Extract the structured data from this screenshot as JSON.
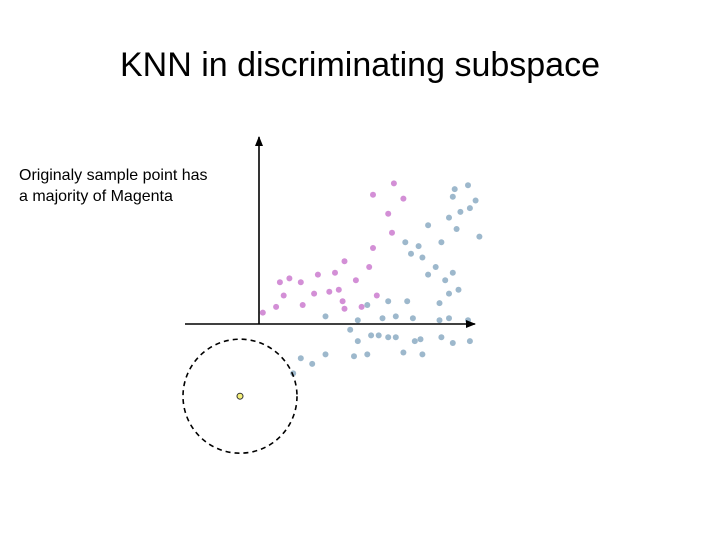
{
  "slide": {
    "title": "KNN in discriminating subspace",
    "caption_lines": [
      "Originaly sample point has",
      "a majority of Magenta"
    ]
  },
  "colors": {
    "magenta": "#d38fd6",
    "blue": "#9db8cc",
    "sample": "#f5f07a",
    "axis": "#000000"
  },
  "chart_data": {
    "type": "scatter",
    "title": "KNN in discriminating subspace",
    "xlabel": "",
    "ylabel": "",
    "annotations": [
      "Originaly sample point has a majority of Magenta"
    ],
    "series": [
      {
        "color": "magenta",
        "points": [
          [
            0.2,
            0.6
          ],
          [
            0.9,
            0.9
          ],
          [
            2.3,
            1.0
          ],
          [
            3.7,
            1.7
          ],
          [
            4.5,
            0.8
          ],
          [
            4.4,
            1.2
          ],
          [
            4.2,
            1.8
          ],
          [
            5.4,
            0.9
          ],
          [
            6.2,
            1.5
          ],
          [
            1.3,
            1.5
          ],
          [
            2.9,
            1.6
          ],
          [
            2.2,
            2.2
          ],
          [
            1.6,
            2.4
          ],
          [
            1.1,
            2.2
          ],
          [
            4.0,
            2.7
          ],
          [
            3.1,
            2.6
          ],
          [
            5.1,
            2.3
          ],
          [
            4.5,
            3.3
          ],
          [
            5.8,
            3.0
          ],
          [
            6.0,
            4.0
          ],
          [
            7.0,
            4.8
          ],
          [
            6.8,
            5.8
          ],
          [
            6.0,
            6.8
          ],
          [
            7.6,
            6.6
          ],
          [
            7.1,
            7.4
          ]
        ]
      },
      {
        "color": "blue",
        "points": [
          [
            2.2,
            -1.8
          ],
          [
            2.8,
            -2.1
          ],
          [
            1.8,
            -2.6
          ],
          [
            3.5,
            -1.6
          ],
          [
            5.0,
            -1.7
          ],
          [
            5.7,
            -1.6
          ],
          [
            7.6,
            -1.5
          ],
          [
            8.6,
            -1.6
          ],
          [
            5.2,
            -0.9
          ],
          [
            6.8,
            -0.7
          ],
          [
            8.2,
            -0.9
          ],
          [
            8.5,
            -0.8
          ],
          [
            10.2,
            -1.0
          ],
          [
            11.1,
            -0.9
          ],
          [
            4.8,
            -0.3
          ],
          [
            5.9,
            -0.6
          ],
          [
            6.3,
            -0.6
          ],
          [
            7.2,
            -0.7
          ],
          [
            9.6,
            -0.7
          ],
          [
            3.5,
            0.4
          ],
          [
            5.2,
            0.2
          ],
          [
            6.5,
            0.3
          ],
          [
            7.2,
            0.4
          ],
          [
            8.1,
            0.3
          ],
          [
            9.5,
            0.2
          ],
          [
            10.0,
            0.3
          ],
          [
            11.0,
            0.2
          ],
          [
            5.7,
            1.0
          ],
          [
            6.8,
            1.2
          ],
          [
            7.8,
            1.2
          ],
          [
            9.5,
            1.1
          ],
          [
            10.0,
            1.6
          ],
          [
            10.5,
            1.8
          ],
          [
            9.8,
            2.3
          ],
          [
            10.2,
            2.7
          ],
          [
            8.9,
            2.6
          ],
          [
            9.3,
            3.0
          ],
          [
            8.6,
            3.5
          ],
          [
            8.0,
            3.7
          ],
          [
            7.7,
            4.3
          ],
          [
            8.4,
            4.1
          ],
          [
            9.6,
            4.3
          ],
          [
            8.9,
            5.2
          ],
          [
            10.4,
            5.0
          ],
          [
            11.6,
            4.6
          ],
          [
            10.6,
            5.9
          ],
          [
            11.1,
            6.1
          ],
          [
            11.4,
            6.5
          ],
          [
            10.3,
            7.1
          ],
          [
            11.0,
            7.3
          ],
          [
            10.2,
            6.7
          ],
          [
            10.0,
            5.6
          ]
        ]
      },
      {
        "color": "sample",
        "points": [
          [
            -1.0,
            -3.8
          ]
        ]
      }
    ],
    "neighborhood": {
      "shape": "dashed circle",
      "center": [
        -1.0,
        -3.8
      ],
      "radius": 3.0
    }
  }
}
